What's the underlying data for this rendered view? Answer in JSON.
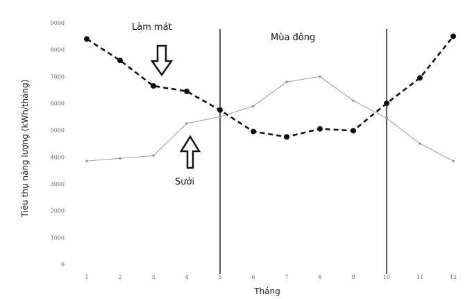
{
  "chart_data": {
    "type": "line",
    "title": "",
    "xlabel": "Tháng",
    "ylabel": "Tiêu thụ năng lượng (kWh/tháng)",
    "x": [
      1,
      2,
      3,
      4,
      5,
      6,
      7,
      8,
      9,
      10,
      11,
      12
    ],
    "xlim": [
      1,
      12
    ],
    "ylim": [
      0,
      9000
    ],
    "yticks": [
      "0",
      "1000",
      "2000",
      "3000",
      "4000",
      "5000",
      "6000",
      "7000",
      "8000",
      "9000"
    ],
    "xticks": [
      "1",
      "2",
      "3",
      "4",
      "5",
      "6",
      "7",
      "8",
      "9",
      "10",
      "11",
      "12"
    ],
    "grid": false,
    "legend": "none",
    "series": [
      {
        "name": "",
        "style": "dashed-bold",
        "color": "#111111",
        "values": [
          8400,
          7600,
          6650,
          6450,
          5750,
          4950,
          4750,
          5050,
          4980,
          6000,
          6950,
          8500
        ]
      },
      {
        "name": "",
        "style": "thin-light",
        "color": "#9a9a9a",
        "values": [
          3850,
          3950,
          4050,
          5250,
          5500,
          5900,
          6800,
          7000,
          6100,
          5450,
          4500,
          3850
        ]
      }
    ],
    "vertical_lines_at_x": [
      5,
      10
    ],
    "annotations": {
      "cooling_label": "Làm mát",
      "winter_label": "Mùa đông",
      "heating_label": "Sưởi"
    }
  }
}
